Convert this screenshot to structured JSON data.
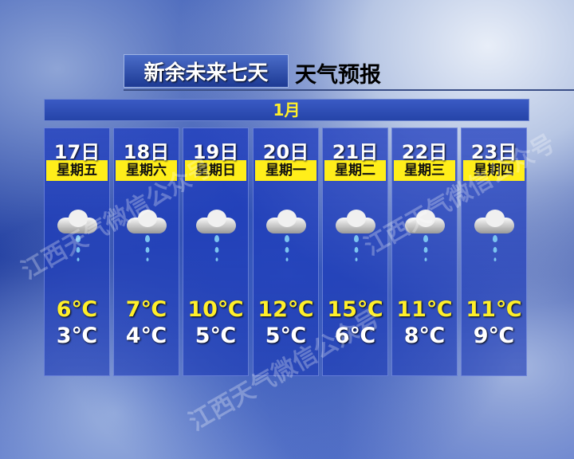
{
  "title": {
    "location": "新余未来七天",
    "subtitle": "天气预报"
  },
  "month": "1月",
  "watermark": "江西天气微信公众号",
  "colors": {
    "high_temp": "#ffef2a",
    "weekday_bg": "#ffee1a",
    "low_temp": "#ffffff"
  },
  "days": [
    {
      "date": "17日",
      "weekday": "星期五",
      "icon": "rain-icon",
      "high": "6℃",
      "low": "3℃"
    },
    {
      "date": "18日",
      "weekday": "星期六",
      "icon": "rain-icon",
      "high": "7℃",
      "low": "4℃"
    },
    {
      "date": "19日",
      "weekday": "星期日",
      "icon": "rain-icon",
      "high": "10℃",
      "low": "5℃"
    },
    {
      "date": "20日",
      "weekday": "星期一",
      "icon": "rain-icon",
      "high": "12℃",
      "low": "5℃"
    },
    {
      "date": "21日",
      "weekday": "星期二",
      "icon": "rain-icon",
      "high": "15℃",
      "low": "6℃"
    },
    {
      "date": "22日",
      "weekday": "星期三",
      "icon": "rain-icon",
      "high": "11℃",
      "low": "8℃"
    },
    {
      "date": "23日",
      "weekday": "星期四",
      "icon": "rain-icon",
      "high": "11℃",
      "low": "9℃"
    }
  ]
}
